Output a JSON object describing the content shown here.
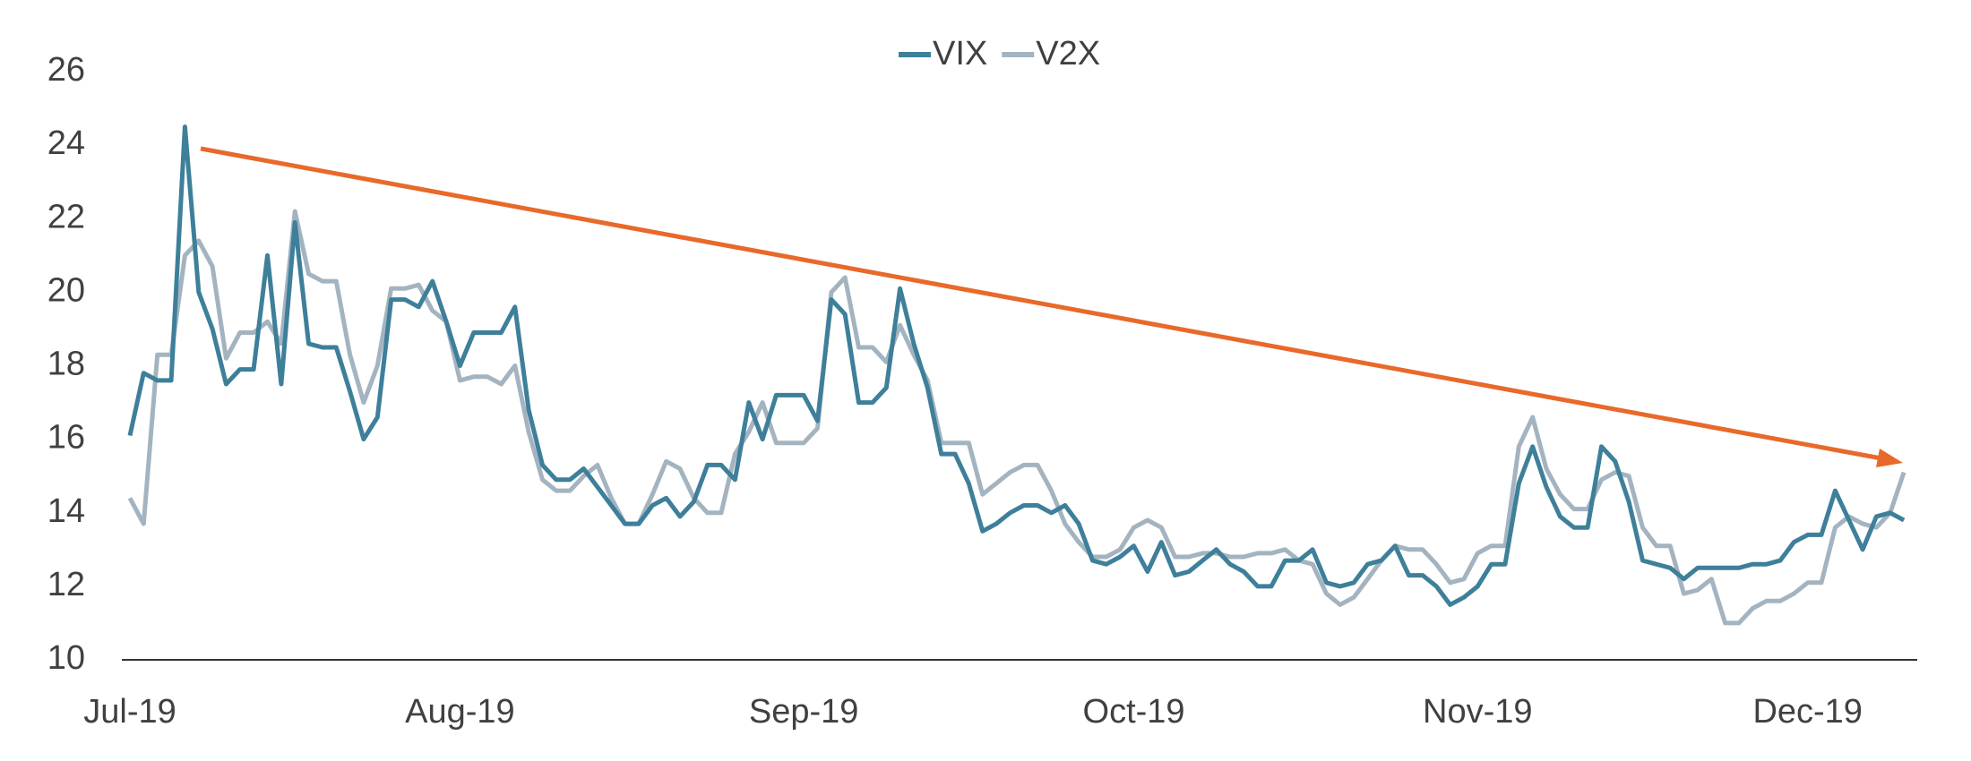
{
  "chart_data": {
    "type": "line",
    "categories": [
      "Jul-19",
      null,
      null,
      null,
      null,
      null,
      null,
      null,
      null,
      null,
      null,
      null,
      null,
      null,
      null,
      null,
      null,
      null,
      null,
      null,
      null,
      null,
      null,
      null,
      "Aug-19",
      null,
      null,
      null,
      null,
      null,
      null,
      null,
      null,
      null,
      null,
      null,
      null,
      null,
      null,
      null,
      null,
      null,
      null,
      null,
      null,
      null,
      null,
      null,
      null,
      "Sep-19",
      null,
      null,
      null,
      null,
      null,
      null,
      null,
      null,
      null,
      null,
      null,
      null,
      null,
      null,
      null,
      null,
      null,
      null,
      null,
      null,
      null,
      null,
      null,
      "Oct-19",
      null,
      null,
      null,
      null,
      null,
      null,
      null,
      null,
      null,
      null,
      null,
      null,
      null,
      null,
      null,
      null,
      null,
      null,
      null,
      null,
      null,
      null,
      null,
      null,
      "Nov-19",
      null,
      null,
      null,
      null,
      null,
      null,
      null,
      null,
      null,
      null,
      null,
      null,
      null,
      null,
      null,
      null,
      null,
      null,
      null,
      null,
      null,
      null,
      null,
      "Dec-19",
      null,
      null,
      null,
      null,
      null,
      null,
      null
    ],
    "series": [
      {
        "name": "VIX",
        "color": "#3e7f9a",
        "values": [
          16.1,
          17.8,
          17.6,
          17.6,
          24.5,
          20.0,
          19.0,
          17.5,
          17.9,
          17.9,
          21.0,
          17.5,
          21.9,
          18.6,
          18.5,
          18.5,
          17.3,
          16.0,
          16.6,
          19.8,
          19.8,
          19.6,
          20.3,
          19.2,
          18.0,
          18.9,
          18.9,
          18.9,
          19.6,
          16.8,
          15.3,
          14.9,
          14.9,
          15.2,
          14.7,
          14.2,
          13.7,
          13.7,
          14.2,
          14.4,
          13.9,
          14.3,
          15.3,
          15.3,
          14.9,
          17.0,
          16.0,
          17.2,
          17.2,
          17.2,
          16.5,
          19.8,
          19.4,
          17.0,
          17.0,
          17.4,
          20.1,
          18.6,
          17.4,
          15.6,
          15.6,
          14.8,
          13.5,
          13.7,
          14.0,
          14.2,
          14.2,
          14.0,
          14.2,
          13.7,
          12.7,
          12.6,
          12.8,
          13.1,
          12.4,
          13.2,
          12.3,
          12.4,
          12.7,
          13.0,
          12.6,
          12.4,
          12.0,
          12.0,
          12.7,
          12.7,
          13.0,
          12.1,
          12.0,
          12.1,
          12.6,
          12.7,
          13.1,
          12.3,
          12.3,
          12.0,
          11.5,
          11.7,
          12.0,
          12.6,
          12.6,
          14.8,
          15.8,
          14.7,
          13.9,
          13.6,
          13.6,
          15.8,
          15.4,
          14.3,
          12.7,
          12.6,
          12.5,
          12.2,
          12.5,
          12.5,
          12.5,
          12.5,
          12.6,
          12.6,
          12.7,
          13.2,
          13.4,
          13.4,
          14.6,
          13.8,
          13.0,
          13.9,
          14.0,
          13.8
        ]
      },
      {
        "name": "V2X",
        "color": "#a3b4c0",
        "values": [
          14.4,
          13.7,
          18.3,
          18.3,
          21.0,
          21.4,
          20.7,
          18.2,
          18.9,
          18.9,
          19.2,
          18.6,
          22.2,
          20.5,
          20.3,
          20.3,
          18.3,
          17.0,
          18.0,
          20.1,
          20.1,
          20.2,
          19.5,
          19.2,
          17.6,
          17.7,
          17.7,
          17.5,
          18.0,
          16.2,
          14.9,
          14.6,
          14.6,
          15.0,
          15.3,
          14.4,
          13.7,
          13.7,
          14.5,
          15.4,
          15.2,
          14.4,
          14.0,
          14.0,
          15.6,
          16.2,
          17.0,
          15.9,
          15.9,
          15.9,
          16.3,
          20.0,
          20.4,
          18.5,
          18.5,
          18.1,
          19.1,
          18.3,
          17.6,
          15.9,
          15.9,
          15.9,
          14.5,
          14.8,
          15.1,
          15.3,
          15.3,
          14.6,
          13.7,
          13.2,
          12.8,
          12.8,
          13.0,
          13.6,
          13.8,
          13.6,
          12.8,
          12.8,
          12.9,
          12.9,
          12.8,
          12.8,
          12.9,
          12.9,
          13.0,
          12.7,
          12.6,
          11.8,
          11.5,
          11.7,
          12.2,
          12.7,
          13.1,
          13.0,
          13.0,
          12.6,
          12.1,
          12.2,
          12.9,
          13.1,
          13.1,
          15.8,
          16.6,
          15.2,
          14.5,
          14.1,
          14.1,
          14.9,
          15.1,
          15.0,
          13.6,
          13.1,
          13.1,
          11.8,
          11.9,
          12.2,
          11.0,
          11.0,
          11.4,
          11.6,
          11.6,
          11.8,
          12.1,
          12.1,
          13.6,
          13.9,
          13.7,
          13.6,
          14.0,
          15.1
        ]
      }
    ],
    "ylim": [
      10,
      26
    ],
    "yticks": [
      10,
      12,
      14,
      16,
      18,
      20,
      22,
      24,
      26
    ],
    "grid": false
  }
}
